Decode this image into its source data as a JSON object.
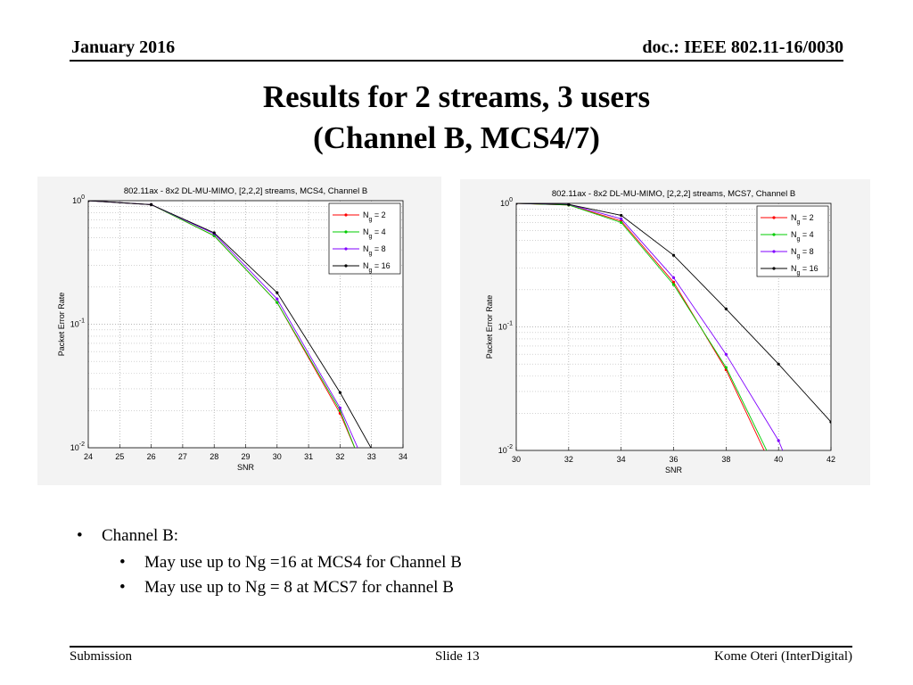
{
  "header": {
    "date": "January 2016",
    "doc": "doc.: IEEE 802.11-16/0030"
  },
  "title": {
    "line1": "Results for 2 streams, 3 users",
    "line2": "(Channel B, MCS4/7)"
  },
  "chart_data": [
    {
      "type": "line",
      "title": "802.11ax - 8x2 DL-MU-MIMO, [2,2,2] streams, MCS4, Channel B",
      "xlabel": "SNR",
      "ylabel": "Packet Error Rate",
      "xlim": [
        24,
        34
      ],
      "ylim": [
        0.01,
        1
      ],
      "yscale": "log",
      "xticks": [
        24,
        25,
        26,
        27,
        28,
        29,
        30,
        31,
        32,
        33,
        34
      ],
      "yticks": [
        {
          "base": "10",
          "exp": "0"
        },
        {
          "base": "10",
          "exp": "-1"
        },
        {
          "base": "10",
          "exp": "-2"
        }
      ],
      "grid": true,
      "legend_position": "top-right",
      "series": [
        {
          "name": "Ng = 2",
          "sub": "g",
          "color": "#ff0000",
          "x": [
            24,
            26,
            28,
            30,
            32,
            32.5
          ],
          "y": [
            1.0,
            0.93,
            0.52,
            0.15,
            0.019,
            0.0095
          ]
        },
        {
          "name": "Ng = 4",
          "sub": "g",
          "color": "#00cc00",
          "x": [
            24,
            26,
            28,
            30,
            32,
            32.5
          ],
          "y": [
            1.0,
            0.93,
            0.52,
            0.15,
            0.02,
            0.0095
          ]
        },
        {
          "name": "Ng = 8",
          "sub": "g",
          "color": "#8000ff",
          "x": [
            24,
            26,
            28,
            30,
            32,
            32.6
          ],
          "y": [
            1.0,
            0.93,
            0.54,
            0.16,
            0.021,
            0.0095
          ]
        },
        {
          "name": "Ng = 16",
          "sub": "g",
          "color": "#000000",
          "x": [
            24,
            26,
            28,
            30,
            32,
            33
          ],
          "y": [
            1.0,
            0.93,
            0.55,
            0.18,
            0.028,
            0.0098
          ]
        }
      ]
    },
    {
      "type": "line",
      "title": "802.11ax - 8x2 DL-MU-MIMO, [2,2,2] streams, MCS7, Channel B",
      "xlabel": "SNR",
      "ylabel": "Packet Error Rate",
      "xlim": [
        30,
        42
      ],
      "ylim": [
        0.01,
        1
      ],
      "yscale": "log",
      "xticks": [
        30,
        32,
        34,
        36,
        38,
        40,
        42
      ],
      "yticks": [
        {
          "base": "10",
          "exp": "0"
        },
        {
          "base": "10",
          "exp": "-1"
        },
        {
          "base": "10",
          "exp": "-2"
        }
      ],
      "grid": true,
      "legend_position": "top-right",
      "series": [
        {
          "name": "Ng = 2",
          "sub": "g",
          "color": "#ff0000",
          "x": [
            30,
            32,
            34,
            36,
            38,
            39.5
          ],
          "y": [
            1.0,
            0.97,
            0.72,
            0.23,
            0.045,
            0.0095
          ]
        },
        {
          "name": "Ng = 4",
          "sub": "g",
          "color": "#00cc00",
          "x": [
            30,
            32,
            34,
            36,
            38,
            39.6
          ],
          "y": [
            1.0,
            0.97,
            0.7,
            0.22,
            0.047,
            0.0095
          ]
        },
        {
          "name": "Ng = 8",
          "sub": "g",
          "color": "#8000ff",
          "x": [
            30,
            32,
            34,
            36,
            38,
            40,
            40.2
          ],
          "y": [
            1.0,
            0.98,
            0.75,
            0.25,
            0.06,
            0.012,
            0.0095
          ]
        },
        {
          "name": "Ng = 16",
          "sub": "g",
          "color": "#000000",
          "x": [
            30,
            32,
            34,
            36,
            38,
            40,
            42
          ],
          "y": [
            1.0,
            0.98,
            0.8,
            0.38,
            0.14,
            0.05,
            0.017
          ]
        }
      ]
    }
  ],
  "bullets": {
    "main": "Channel B:",
    "sub": [
      "May use up to Ng =16 at MCS4 for Channel B",
      "May use up to Ng = 8  at MCS7 for channel B"
    ]
  },
  "footer": {
    "left": "Submission",
    "center": "Slide 13",
    "right": "Kome Oteri (InterDigital)"
  }
}
